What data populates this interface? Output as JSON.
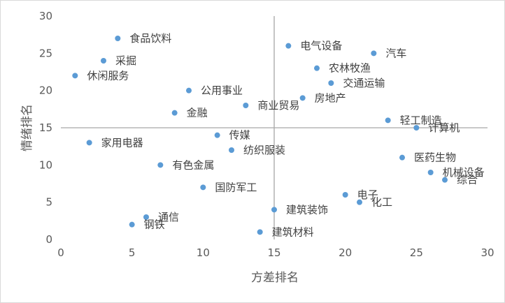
{
  "chart_data": {
    "type": "scatter",
    "xlabel": "方差排名",
    "ylabel": "情绪排名",
    "xlim": [
      0,
      30
    ],
    "ylim": [
      0,
      30
    ],
    "xticks": [
      0,
      5,
      10,
      15,
      20,
      25,
      30
    ],
    "yticks": [
      0,
      5,
      10,
      15,
      20,
      25,
      30
    ],
    "x_ref": 15,
    "y_ref": 15,
    "grid": false,
    "point_color": "#5B9BD5",
    "ref_line_color": "#A6A6A6",
    "points": [
      {
        "label": "食品饮料",
        "x": 4,
        "y": 27
      },
      {
        "label": "采掘",
        "x": 3,
        "y": 24
      },
      {
        "label": "休闲服务",
        "x": 1,
        "y": 22
      },
      {
        "label": "公用事业",
        "x": 9,
        "y": 20
      },
      {
        "label": "金融",
        "x": 8,
        "y": 17
      },
      {
        "label": "家用电器",
        "x": 2,
        "y": 13
      },
      {
        "label": "传媒",
        "x": 11,
        "y": 14
      },
      {
        "label": "纺织服装",
        "x": 12,
        "y": 12
      },
      {
        "label": "有色金属",
        "x": 7,
        "y": 10
      },
      {
        "label": "国防军工",
        "x": 10,
        "y": 7
      },
      {
        "label": "通信",
        "x": 6,
        "y": 3
      },
      {
        "label": "钢铁",
        "x": 5,
        "y": 2
      },
      {
        "label": "电气设备",
        "x": 16,
        "y": 26
      },
      {
        "label": "汽车",
        "x": 22,
        "y": 25
      },
      {
        "label": "农林牧渔",
        "x": 18,
        "y": 23
      },
      {
        "label": "交通运输",
        "x": 19,
        "y": 21
      },
      {
        "label": "商业贸易",
        "x": 13,
        "y": 18
      },
      {
        "label": "房地产",
        "x": 17,
        "y": 19
      },
      {
        "label": "轻工制造",
        "x": 23,
        "y": 16
      },
      {
        "label": "计算机",
        "x": 25,
        "y": 15
      },
      {
        "label": "医药生物",
        "x": 24,
        "y": 11
      },
      {
        "label": "机械设备",
        "x": 26,
        "y": 9
      },
      {
        "label": "综合",
        "x": 27,
        "y": 8
      },
      {
        "label": "电子",
        "x": 20,
        "y": 6
      },
      {
        "label": "化工",
        "x": 21,
        "y": 5
      },
      {
        "label": "建筑装饰",
        "x": 15,
        "y": 4
      },
      {
        "label": "建筑材料",
        "x": 14,
        "y": 1
      }
    ]
  }
}
